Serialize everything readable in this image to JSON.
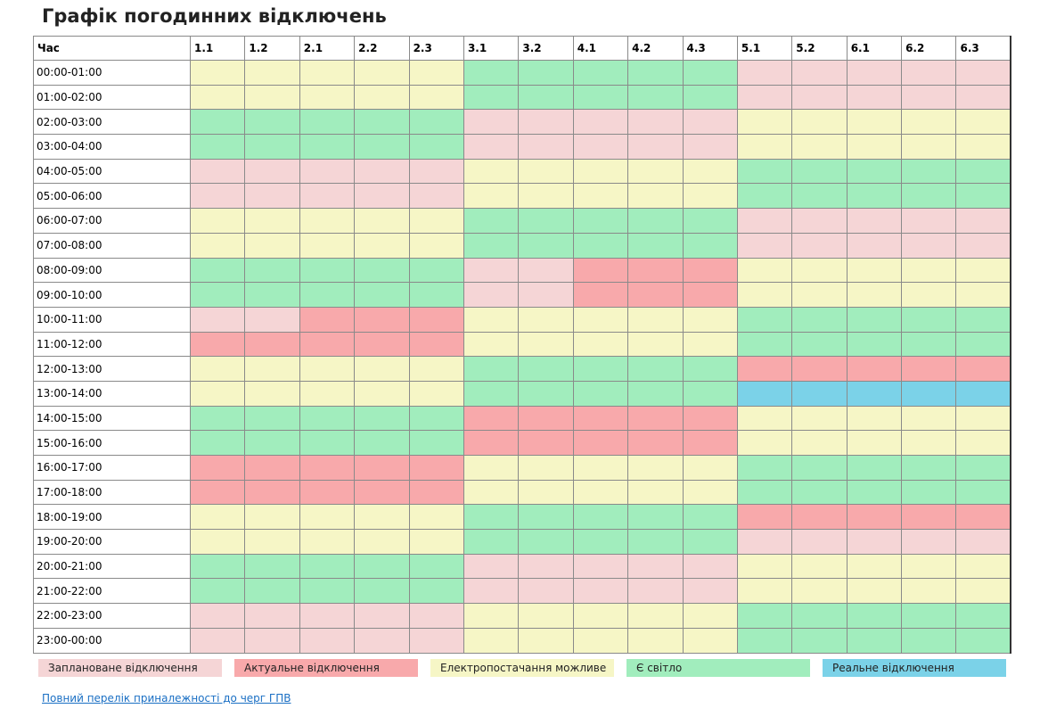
{
  "title": "Графік погодинних відключень",
  "table": {
    "time_header": "Час",
    "columns": [
      "1.1",
      "1.2",
      "2.1",
      "2.2",
      "2.3",
      "3.1",
      "3.2",
      "4.1",
      "4.2",
      "4.3",
      "5.1",
      "5.2",
      "6.1",
      "6.2",
      "6.3"
    ],
    "rows": [
      {
        "time": "00:00-01:00",
        "cells": [
          "m",
          "m",
          "m",
          "m",
          "m",
          "g",
          "g",
          "g",
          "g",
          "g",
          "p",
          "p",
          "p",
          "p",
          "p"
        ]
      },
      {
        "time": "01:00-02:00",
        "cells": [
          "m",
          "m",
          "m",
          "m",
          "m",
          "g",
          "g",
          "g",
          "g",
          "g",
          "p",
          "p",
          "p",
          "p",
          "p"
        ]
      },
      {
        "time": "02:00-03:00",
        "cells": [
          "g",
          "g",
          "g",
          "g",
          "g",
          "p",
          "p",
          "p",
          "p",
          "p",
          "m",
          "m",
          "m",
          "m",
          "m"
        ]
      },
      {
        "time": "03:00-04:00",
        "cells": [
          "g",
          "g",
          "g",
          "g",
          "g",
          "p",
          "p",
          "p",
          "p",
          "p",
          "m",
          "m",
          "m",
          "m",
          "m"
        ]
      },
      {
        "time": "04:00-05:00",
        "cells": [
          "p",
          "p",
          "p",
          "p",
          "p",
          "m",
          "m",
          "m",
          "m",
          "m",
          "g",
          "g",
          "g",
          "g",
          "g"
        ]
      },
      {
        "time": "05:00-06:00",
        "cells": [
          "p",
          "p",
          "p",
          "p",
          "p",
          "m",
          "m",
          "m",
          "m",
          "m",
          "g",
          "g",
          "g",
          "g",
          "g"
        ]
      },
      {
        "time": "06:00-07:00",
        "cells": [
          "m",
          "m",
          "m",
          "m",
          "m",
          "g",
          "g",
          "g",
          "g",
          "g",
          "p",
          "p",
          "p",
          "p",
          "p"
        ]
      },
      {
        "time": "07:00-08:00",
        "cells": [
          "m",
          "m",
          "m",
          "m",
          "m",
          "g",
          "g",
          "g",
          "g",
          "g",
          "p",
          "p",
          "p",
          "p",
          "p"
        ]
      },
      {
        "time": "08:00-09:00",
        "cells": [
          "g",
          "g",
          "g",
          "g",
          "g",
          "p",
          "p",
          "a",
          "a",
          "a",
          "m",
          "m",
          "m",
          "m",
          "m"
        ]
      },
      {
        "time": "09:00-10:00",
        "cells": [
          "g",
          "g",
          "g",
          "g",
          "g",
          "p",
          "p",
          "a",
          "a",
          "a",
          "m",
          "m",
          "m",
          "m",
          "m"
        ]
      },
      {
        "time": "10:00-11:00",
        "cells": [
          "p",
          "p",
          "a",
          "a",
          "a",
          "m",
          "m",
          "m",
          "m",
          "m",
          "g",
          "g",
          "g",
          "g",
          "g"
        ]
      },
      {
        "time": "11:00-12:00",
        "cells": [
          "a",
          "a",
          "a",
          "a",
          "a",
          "m",
          "m",
          "m",
          "m",
          "m",
          "g",
          "g",
          "g",
          "g",
          "g"
        ]
      },
      {
        "time": "12:00-13:00",
        "cells": [
          "m",
          "m",
          "m",
          "m",
          "m",
          "g",
          "g",
          "g",
          "g",
          "g",
          "a",
          "a",
          "a",
          "a",
          "a"
        ]
      },
      {
        "time": "13:00-14:00",
        "cells": [
          "m",
          "m",
          "m",
          "m",
          "m",
          "g",
          "g",
          "g",
          "g",
          "g",
          "r",
          "r",
          "r",
          "r",
          "r"
        ]
      },
      {
        "time": "14:00-15:00",
        "cells": [
          "g",
          "g",
          "g",
          "g",
          "g",
          "a",
          "a",
          "a",
          "a",
          "a",
          "m",
          "m",
          "m",
          "m",
          "m"
        ]
      },
      {
        "time": "15:00-16:00",
        "cells": [
          "g",
          "g",
          "g",
          "g",
          "g",
          "a",
          "a",
          "a",
          "a",
          "a",
          "m",
          "m",
          "m",
          "m",
          "m"
        ]
      },
      {
        "time": "16:00-17:00",
        "cells": [
          "a",
          "a",
          "a",
          "a",
          "a",
          "m",
          "m",
          "m",
          "m",
          "m",
          "g",
          "g",
          "g",
          "g",
          "g"
        ]
      },
      {
        "time": "17:00-18:00",
        "cells": [
          "a",
          "a",
          "a",
          "a",
          "a",
          "m",
          "m",
          "m",
          "m",
          "m",
          "g",
          "g",
          "g",
          "g",
          "g"
        ]
      },
      {
        "time": "18:00-19:00",
        "cells": [
          "m",
          "m",
          "m",
          "m",
          "m",
          "g",
          "g",
          "g",
          "g",
          "g",
          "a",
          "a",
          "a",
          "a",
          "a"
        ]
      },
      {
        "time": "19:00-20:00",
        "cells": [
          "m",
          "m",
          "m",
          "m",
          "m",
          "g",
          "g",
          "g",
          "g",
          "g",
          "p",
          "p",
          "p",
          "p",
          "p"
        ]
      },
      {
        "time": "20:00-21:00",
        "cells": [
          "g",
          "g",
          "g",
          "g",
          "g",
          "p",
          "p",
          "p",
          "p",
          "p",
          "m",
          "m",
          "m",
          "m",
          "m"
        ]
      },
      {
        "time": "21:00-22:00",
        "cells": [
          "g",
          "g",
          "g",
          "g",
          "g",
          "p",
          "p",
          "p",
          "p",
          "p",
          "m",
          "m",
          "m",
          "m",
          "m"
        ]
      },
      {
        "time": "22:00-23:00",
        "cells": [
          "p",
          "p",
          "p",
          "p",
          "p",
          "m",
          "m",
          "m",
          "m",
          "m",
          "g",
          "g",
          "g",
          "g",
          "g"
        ]
      },
      {
        "time": "23:00-00:00",
        "cells": [
          "p",
          "p",
          "p",
          "p",
          "p",
          "m",
          "m",
          "m",
          "m",
          "m",
          "g",
          "g",
          "g",
          "g",
          "g"
        ]
      }
    ]
  },
  "legend": [
    {
      "key": "p",
      "label": "Заплановане відключення",
      "color": "#f5d5d6"
    },
    {
      "key": "a",
      "label": "Актуальне відключення",
      "color": "#f8a9ab"
    },
    {
      "key": "m",
      "label": "Електропостачання можливе",
      "color": "#f6f6c6"
    },
    {
      "key": "g",
      "label": "Є світло",
      "color": "#a1edbd"
    },
    {
      "key": "r",
      "label": "Реальне відключення",
      "color": "#7bd2e8"
    }
  ],
  "link": {
    "label": "Повний перелік приналежності до черг ГПВ"
  }
}
